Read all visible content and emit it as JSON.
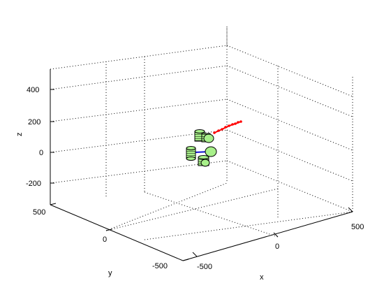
{
  "figure": {
    "type": "3d-plot",
    "x_axis": {
      "label": "x",
      "tick_labels": [
        "-500",
        "0",
        "500"
      ]
    },
    "y_axis": {
      "label": "y",
      "tick_labels": [
        "500",
        "0",
        "-500"
      ]
    },
    "z_axis": {
      "label": "z",
      "tick_labels": [
        "400",
        "200",
        "0",
        "-200"
      ]
    },
    "grid": "on (dotted)",
    "colors": {
      "axes": "#000000",
      "grid": "#000000",
      "body_fill": "#a8f08a",
      "body_edge": "#000000",
      "link": "#1010d0",
      "trajectory": "#ff0000"
    }
  }
}
